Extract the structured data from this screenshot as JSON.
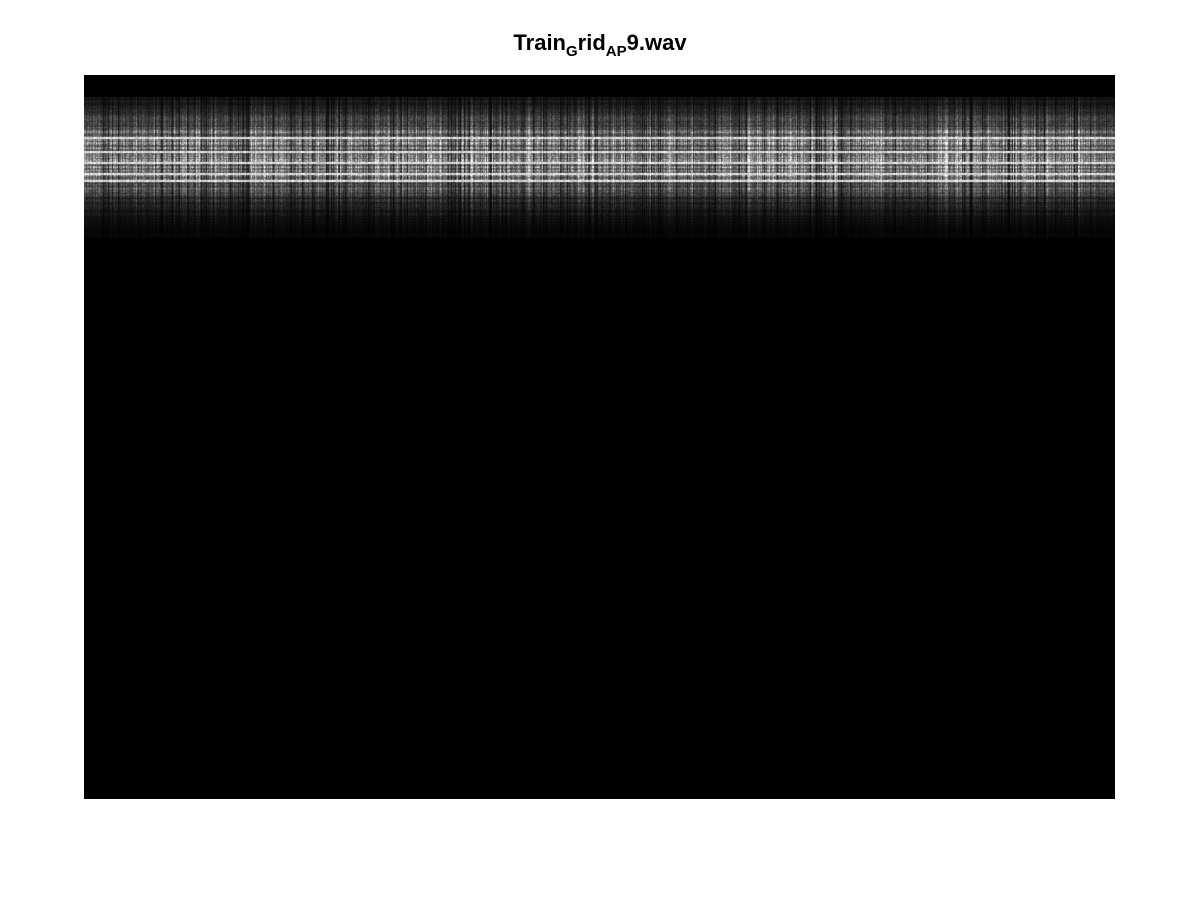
{
  "figure": {
    "title_parts": [
      {
        "text": "Train",
        "sub": false
      },
      {
        "text": "G",
        "sub": true
      },
      {
        "text": "rid",
        "sub": false
      },
      {
        "text": "AP",
        "sub": true
      },
      {
        "text": "9.wav",
        "sub": false
      }
    ]
  },
  "chart_data": {
    "type": "heatmap",
    "title": "TrainGridAP9.wav",
    "colormap": "gray",
    "background_color": "#000000",
    "axes_visible": false,
    "grid": false,
    "legend": "none",
    "description_values": {
      "energy_band_rows_fraction": [
        0.03,
        0.21
      ],
      "strongest_rows_fraction": [
        0.085,
        0.105,
        0.12,
        0.135,
        0.145
      ],
      "row_intensity_profile": [
        {
          "row": 0.03,
          "level": 0.15
        },
        {
          "row": 0.04,
          "level": 0.22
        },
        {
          "row": 0.05,
          "level": 0.3
        },
        {
          "row": 0.06,
          "level": 0.45
        },
        {
          "row": 0.07,
          "level": 0.6
        },
        {
          "row": 0.08,
          "level": 0.8
        },
        {
          "row": 0.09,
          "level": 0.95
        },
        {
          "row": 0.1,
          "level": 0.85
        },
        {
          "row": 0.11,
          "level": 0.98
        },
        {
          "row": 0.12,
          "level": 0.9
        },
        {
          "row": 0.13,
          "level": 0.95
        },
        {
          "row": 0.14,
          "level": 0.85
        },
        {
          "row": 0.15,
          "level": 0.7
        },
        {
          "row": 0.16,
          "level": 0.5
        },
        {
          "row": 0.17,
          "level": 0.35
        },
        {
          "row": 0.18,
          "level": 0.25
        },
        {
          "row": 0.19,
          "level": 0.18
        },
        {
          "row": 0.2,
          "level": 0.12
        },
        {
          "row": 0.21,
          "level": 0.06
        }
      ]
    }
  }
}
